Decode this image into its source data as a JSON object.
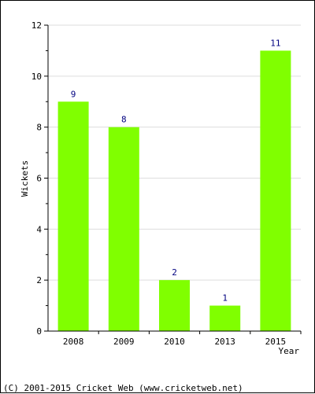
{
  "chart_data": {
    "type": "bar",
    "categories": [
      "2008",
      "2009",
      "2010",
      "2013",
      "2015"
    ],
    "values": [
      9,
      8,
      2,
      1,
      11
    ],
    "data_labels": [
      "9",
      "8",
      "2",
      "1",
      "11"
    ],
    "title": "",
    "xlabel": "Year",
    "ylabel": "Wickets",
    "ylim": [
      0,
      12
    ],
    "yticks": [
      0,
      2,
      4,
      6,
      8,
      10,
      12
    ],
    "grid": true,
    "bar_color": "#80ff00",
    "label_color": "#000080"
  },
  "footer": {
    "copyright": "(C) 2001-2015 Cricket Web (www.cricketweb.net)"
  }
}
